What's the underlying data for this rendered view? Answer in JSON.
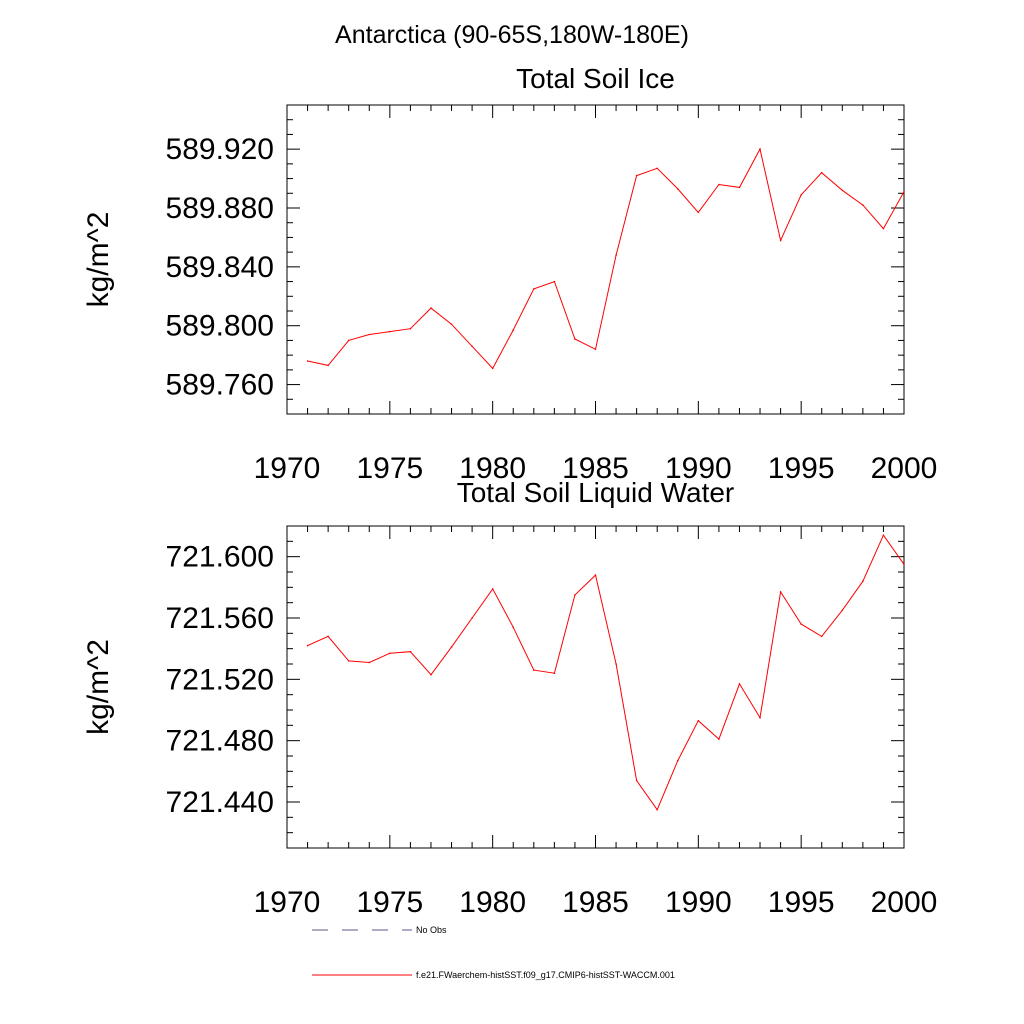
{
  "figure": {
    "header": "Antarctica (90-65S,180W-180E)"
  },
  "chart_data": [
    {
      "type": "line",
      "title": "Total Soil Ice",
      "xlabel": "",
      "ylabel": "kg/m^2",
      "xlim": [
        1970,
        2000
      ],
      "ylim": [
        589.74,
        589.95
      ],
      "xticks": [
        "1970",
        "1975",
        "1980",
        "1985",
        "1990",
        "1995",
        "2000"
      ],
      "yticks": [
        "589.760",
        "589.800",
        "589.840",
        "589.880",
        "589.920"
      ],
      "grid": false,
      "series": [
        {
          "name": "f.e21.FWaerchem-histSST.f09_g17.CMIP6-histSST-WACCM.001",
          "color": "#ff0000",
          "x": [
            1971,
            1972,
            1973,
            1974,
            1975,
            1976,
            1977,
            1978,
            1979,
            1980,
            1981,
            1982,
            1983,
            1984,
            1985,
            1986,
            1987,
            1988,
            1989,
            1990,
            1991,
            1992,
            1993,
            1994,
            1995,
            1996,
            1997,
            1998,
            1999,
            2000
          ],
          "values": [
            589.776,
            589.773,
            589.79,
            589.794,
            589.796,
            589.798,
            589.812,
            589.801,
            589.786,
            589.771,
            589.797,
            589.825,
            589.83,
            589.791,
            589.784,
            589.848,
            589.902,
            589.907,
            589.893,
            589.877,
            589.896,
            589.894,
            589.92,
            589.858,
            589.889,
            589.904,
            589.892,
            589.882,
            589.866,
            589.891
          ]
        }
      ]
    },
    {
      "type": "line",
      "title": "Total Soil Liquid Water",
      "xlabel": "",
      "ylabel": "kg/m^2",
      "xlim": [
        1970,
        2000
      ],
      "ylim": [
        721.41,
        721.62
      ],
      "xticks": [
        "1970",
        "1975",
        "1980",
        "1985",
        "1990",
        "1995",
        "2000"
      ],
      "yticks": [
        "721.440",
        "721.480",
        "721.520",
        "721.560",
        "721.600"
      ],
      "grid": false,
      "series": [
        {
          "name": "f.e21.FWaerchem-histSST.f09_g17.CMIP6-histSST-WACCM.001",
          "color": "#ff0000",
          "x": [
            1971,
            1972,
            1973,
            1974,
            1975,
            1976,
            1977,
            1978,
            1979,
            1980,
            1981,
            1982,
            1983,
            1984,
            1985,
            1986,
            1987,
            1988,
            1989,
            1990,
            1991,
            1992,
            1993,
            1994,
            1995,
            1996,
            1997,
            1998,
            1999,
            2000
          ],
          "values": [
            721.542,
            721.548,
            721.532,
            721.531,
            721.537,
            721.538,
            721.523,
            721.541,
            721.56,
            721.579,
            721.554,
            721.526,
            721.524,
            721.575,
            721.588,
            721.53,
            721.454,
            721.435,
            721.467,
            721.493,
            721.481,
            721.517,
            721.495,
            721.577,
            721.556,
            721.548,
            721.565,
            721.584,
            721.614,
            721.595
          ]
        }
      ]
    }
  ],
  "legend": {
    "items": [
      {
        "label": "No Obs",
        "color": "#5a5a8c",
        "style": "dashed"
      },
      {
        "label": "f.e21.FWaerchem-histSST.f09_g17.CMIP6-histSST-WACCM.001",
        "color": "#ff0000",
        "style": "solid"
      }
    ]
  }
}
